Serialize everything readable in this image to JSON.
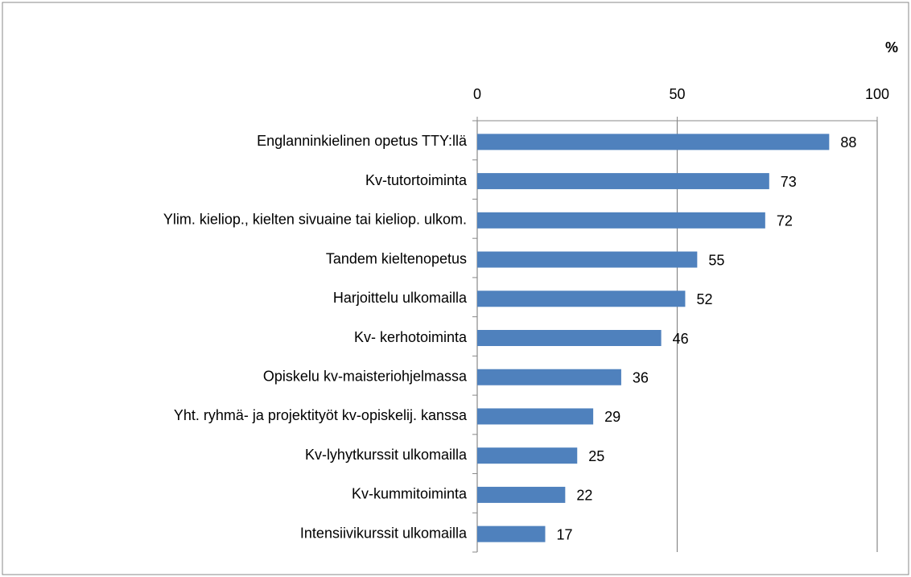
{
  "chart_data": {
    "type": "bar",
    "orientation": "horizontal",
    "axis_label": "%",
    "categories": [
      "Englanninkielinen opetus TTY:llä",
      "Kv-tutortoiminta",
      "Ylim. kieliop., kielten sivuaine tai kieliop. ulkom.",
      "Tandem kieltenopetus",
      "Harjoittelu ulkomailla",
      "Kv- kerhotoiminta",
      "Opiskelu kv-maisteriohjelmassa",
      "Yht. ryhmä- ja projektityöt kv-opiskelij. kanssa",
      "Kv-lyhytkurssit ulkomailla",
      "Kv-kummitoiminta",
      "Intensiivikurssit ulkomailla"
    ],
    "values": [
      88,
      73,
      72,
      55,
      52,
      46,
      36,
      29,
      25,
      22,
      17
    ],
    "color": "#4f81bd",
    "xlim": [
      0,
      100
    ],
    "xticks": [
      0,
      50,
      100
    ],
    "grid": true
  }
}
